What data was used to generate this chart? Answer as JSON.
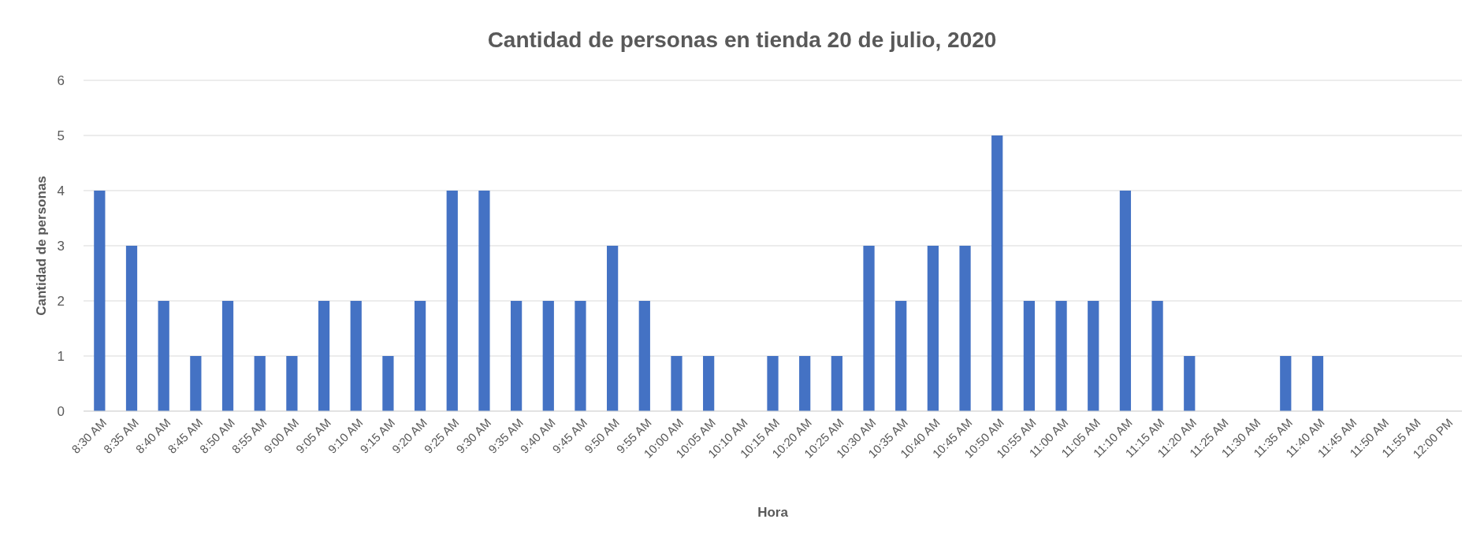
{
  "chart_data": {
    "type": "bar",
    "title": "Cantidad de personas en tienda 20 de julio, 2020",
    "xlabel": "Hora",
    "ylabel": "Cantidad de personas",
    "categories": [
      "8:30 AM",
      "8:35 AM",
      "8:40 AM",
      "8:45 AM",
      "8:50 AM",
      "8:55 AM",
      "9:00 AM",
      "9:05 AM",
      "9:10 AM",
      "9:15 AM",
      "9:20 AM",
      "9:25 AM",
      "9:30 AM",
      "9:35 AM",
      "9:40 AM",
      "9:45 AM",
      "9:50 AM",
      "9:55 AM",
      "10:00 AM",
      "10:05 AM",
      "10:10 AM",
      "10:15 AM",
      "10:20 AM",
      "10:25 AM",
      "10:30 AM",
      "10:35 AM",
      "10:40 AM",
      "10:45 AM",
      "10:50 AM",
      "10:55 AM",
      "11:00 AM",
      "11:05 AM",
      "11:10 AM",
      "11:15 AM",
      "11:20 AM",
      "11:25 AM",
      "11:30 AM",
      "11:35 AM",
      "11:40 AM",
      "11:45 AM",
      "11:50 AM",
      "11:55 AM",
      "12:00 PM"
    ],
    "values": [
      4,
      3,
      2,
      1,
      2,
      1,
      1,
      2,
      2,
      1,
      2,
      4,
      4,
      2,
      2,
      2,
      3,
      2,
      1,
      1,
      0,
      1,
      1,
      1,
      3,
      2,
      3,
      3,
      5,
      2,
      2,
      2,
      4,
      2,
      1,
      0,
      0,
      1,
      1,
      0,
      0,
      0,
      0
    ],
    "color": "#4472c4",
    "ylim": [
      0,
      6
    ],
    "yticks": [
      0,
      1,
      2,
      3,
      4,
      5,
      6
    ],
    "grid": "y"
  }
}
